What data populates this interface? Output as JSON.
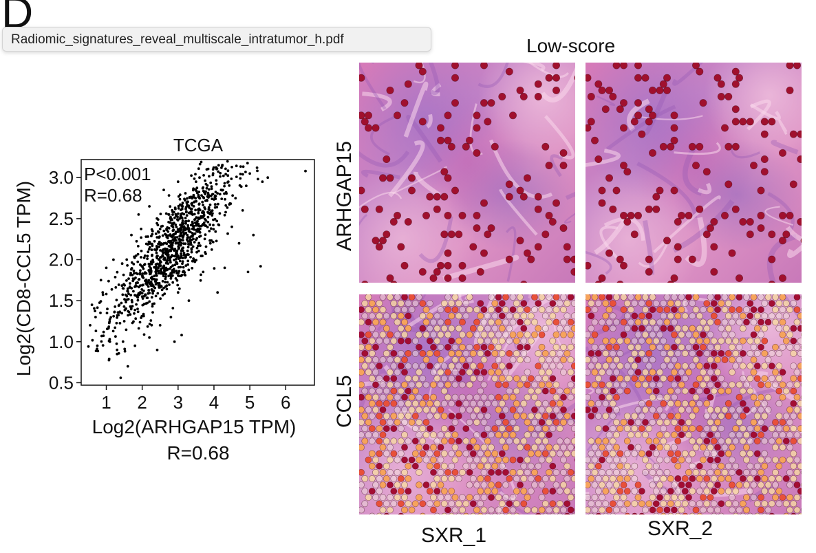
{
  "figure": {
    "panel_letter": "D",
    "tooltip": "Radiomic_signatures_reveal_multiscale_intratumor_h.pdf",
    "low_score_title": "Low-score",
    "row_labels": [
      "ARHGAP15",
      "CCL5"
    ],
    "col_labels": [
      "SXR_1",
      "SXR_2"
    ]
  },
  "chart_data": {
    "type": "scatter",
    "title": "TCGA",
    "xlabel": "Log2(ARHGAP15 TPM)",
    "ylabel": "Log2(CD8-CCL5 TPM)",
    "subtitle": "R=0.68",
    "annotations": [
      "P<0.001",
      "R=0.68"
    ],
    "xlim": [
      0.3,
      6.8
    ],
    "ylim": [
      0.47,
      3.22
    ],
    "xticks": [
      1,
      2,
      3,
      4,
      5,
      6
    ],
    "yticks": [
      0.5,
      1.0,
      1.5,
      2.0,
      2.5,
      3.0
    ],
    "ytick_labels": [
      "0.5",
      "1.0",
      "1.5",
      "2.0",
      "2.5",
      "3.0"
    ],
    "grid": false,
    "colors": {
      "points": "#000000"
    },
    "points": [
      [
        6.55,
        3.08
      ],
      [
        5.5,
        3.0
      ],
      [
        5.2,
        3.12
      ],
      [
        5.35,
        2.95
      ],
      [
        5.0,
        3.05
      ],
      [
        4.9,
        2.9
      ],
      [
        5.3,
        1.92
      ],
      [
        4.1,
        1.6
      ],
      [
        4.95,
        1.85
      ],
      [
        3.1,
        1.08
      ],
      [
        1.4,
        0.56
      ],
      [
        0.55,
        1.2
      ],
      [
        0.75,
        0.95
      ],
      [
        1.3,
        0.85
      ],
      [
        0.6,
        1.45
      ],
      [
        4.6,
        2.75
      ],
      [
        4.4,
        2.95
      ],
      [
        4.2,
        2.85
      ],
      [
        4.8,
        2.6
      ],
      [
        4.5,
        2.4
      ],
      [
        1.0,
        1.9
      ],
      [
        1.3,
        0.9
      ],
      [
        1.1,
        1.0
      ],
      [
        2.2,
        1.05
      ],
      [
        1.8,
        0.95
      ],
      [
        0.9,
        1.6
      ],
      [
        0.7,
        1.3
      ],
      [
        3.8,
        3.1
      ],
      [
        3.5,
        2.95
      ],
      [
        3.9,
        2.2
      ],
      [
        5.1,
        2.3
      ],
      [
        4.7,
        2.2
      ],
      [
        2.8,
        1.3
      ],
      [
        2.5,
        1.2
      ],
      [
        1.6,
        0.7
      ],
      [
        2.0,
        1.55
      ],
      [
        1.5,
        1.25
      ],
      [
        3.3,
        1.5
      ],
      [
        3.0,
        1.6
      ],
      [
        2.6,
        2.85
      ],
      [
        3.0,
        2.95
      ],
      [
        2.2,
        2.65
      ],
      [
        1.9,
        2.55
      ],
      [
        1.7,
        2.3
      ],
      [
        1.2,
        2.0
      ],
      [
        4.3,
        1.9
      ],
      [
        3.7,
        1.85
      ],
      [
        0.85,
        1.75
      ],
      [
        2.9,
        1.0
      ]
    ],
    "n_points_approx": 1100
  }
}
